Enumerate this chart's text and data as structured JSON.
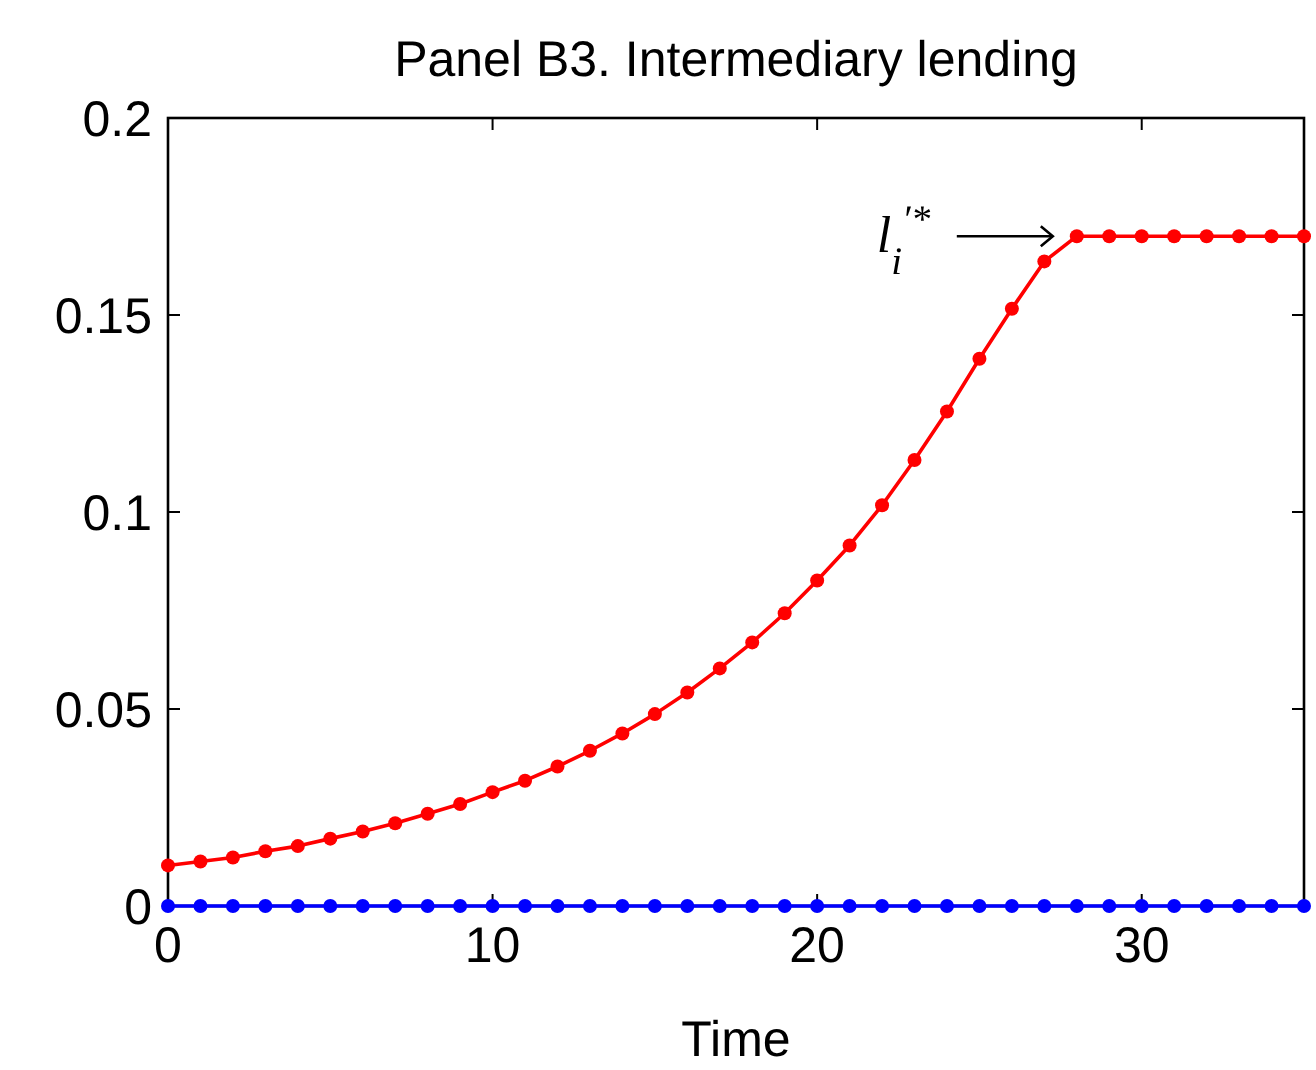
{
  "chart_data": {
    "type": "line",
    "title": "Panel B3. Intermediary lending",
    "xlabel": "Time",
    "x": [
      0,
      1,
      2,
      3,
      4,
      5,
      6,
      7,
      8,
      9,
      10,
      11,
      12,
      13,
      14,
      15,
      16,
      17,
      18,
      19,
      20,
      21,
      22,
      23,
      24,
      25,
      26,
      27,
      28,
      29,
      30,
      31,
      32,
      33,
      34,
      35
    ],
    "series": [
      {
        "color": "#ff0000",
        "values": [
          0.0103,
          0.0113,
          0.0123,
          0.0139,
          0.0152,
          0.0171,
          0.0189,
          0.021,
          0.0234,
          0.0259,
          0.0289,
          0.0318,
          0.0354,
          0.0394,
          0.0438,
          0.0487,
          0.0542,
          0.0603,
          0.0669,
          0.0743,
          0.0826,
          0.0915,
          0.1017,
          0.1132,
          0.1255,
          0.1389,
          0.1516,
          0.1636,
          0.17,
          0.17,
          0.17,
          0.17,
          0.17,
          0.17,
          0.17,
          0.17
        ]
      },
      {
        "color": "#0000ff",
        "values": [
          0,
          0,
          0,
          0,
          0,
          0,
          0,
          0,
          0,
          0,
          0,
          0,
          0,
          0,
          0,
          0,
          0,
          0,
          0,
          0,
          0,
          0,
          0,
          0,
          0,
          0,
          0,
          0,
          0,
          0,
          0,
          0,
          0,
          0,
          0,
          0
        ]
      }
    ],
    "xlim": [
      0,
      35
    ],
    "ylim": [
      0,
      0.2
    ],
    "xticks": [
      0,
      10,
      20,
      30
    ],
    "yticks": [
      0,
      0.05,
      0.1,
      0.15,
      0.2
    ],
    "marker": "circle",
    "line_style": "solid",
    "annotations": [
      {
        "text": "l$_{i}$$^{′*}$",
        "x": 28,
        "y": 0.17
      }
    ]
  }
}
